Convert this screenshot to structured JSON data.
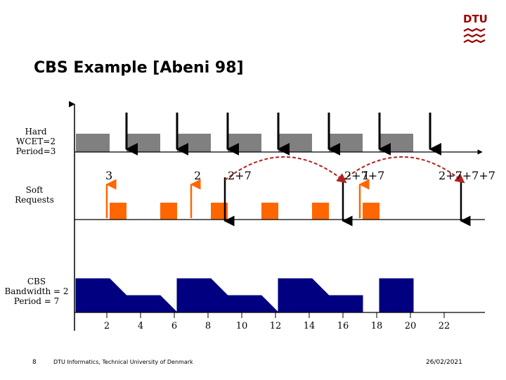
{
  "title": "CBS Example [Abeni 98]",
  "logo": {
    "text": "DTU",
    "color": "#990000"
  },
  "labels": {
    "hard": [
      "Hard",
      "WCET=2",
      "Period=3"
    ],
    "soft": [
      "Soft",
      "Requests"
    ],
    "cbs": [
      "CBS",
      "Bandwidth = 2",
      "Period = 7"
    ]
  },
  "annotations": [
    {
      "text": "3",
      "time": 2
    },
    {
      "text": "2",
      "time": 7
    },
    {
      "text": "2+7",
      "time": 9
    },
    {
      "text": "2+7+7",
      "time": 16
    },
    {
      "text": "1",
      "time": 17
    },
    {
      "text": "2+7+7+7",
      "time": 23
    }
  ],
  "axis": {
    "ticks": [
      "2",
      "4",
      "6",
      "8",
      "10",
      "12",
      "14",
      "16",
      "18",
      "20",
      "22"
    ]
  },
  "hard_task": {
    "color": "#808080",
    "executions": [
      [
        0,
        2
      ],
      [
        3,
        5
      ],
      [
        6,
        8
      ],
      [
        9,
        11
      ],
      [
        12,
        14
      ],
      [
        15,
        17
      ],
      [
        18,
        20
      ]
    ],
    "deadlines": [
      3,
      6,
      9,
      12,
      15,
      18,
      21
    ]
  },
  "soft_requests": {
    "color": "#ff6600",
    "arrivals": [
      2,
      7,
      17
    ],
    "executions": [
      [
        2,
        3
      ],
      [
        5,
        6
      ],
      [
        8,
        9
      ],
      [
        11,
        12
      ],
      [
        14,
        15
      ],
      [
        17,
        18
      ]
    ],
    "deadlines": [
      9,
      16,
      23
    ],
    "postponements": [
      [
        9,
        16
      ],
      [
        16,
        23
      ]
    ],
    "curve_color": "#b22222"
  },
  "cbs_budget": {
    "color": "#000080",
    "max": 2,
    "points": [
      [
        0,
        2
      ],
      [
        2,
        2
      ],
      [
        3,
        1
      ],
      [
        5,
        1
      ],
      [
        6,
        0
      ],
      [
        6,
        2
      ],
      [
        8,
        2
      ],
      [
        9,
        1
      ],
      [
        11,
        1
      ],
      [
        12,
        0
      ],
      [
        12,
        2
      ],
      [
        14,
        2
      ],
      [
        15,
        1
      ],
      [
        17,
        1
      ],
      [
        17,
        0
      ],
      [
        18,
        0
      ],
      [
        18,
        2
      ],
      [
        20,
        2
      ]
    ]
  },
  "footer": {
    "page": "8",
    "text": "DTU Informatics, Technical University of Denmark",
    "date": "26/02/2021"
  }
}
